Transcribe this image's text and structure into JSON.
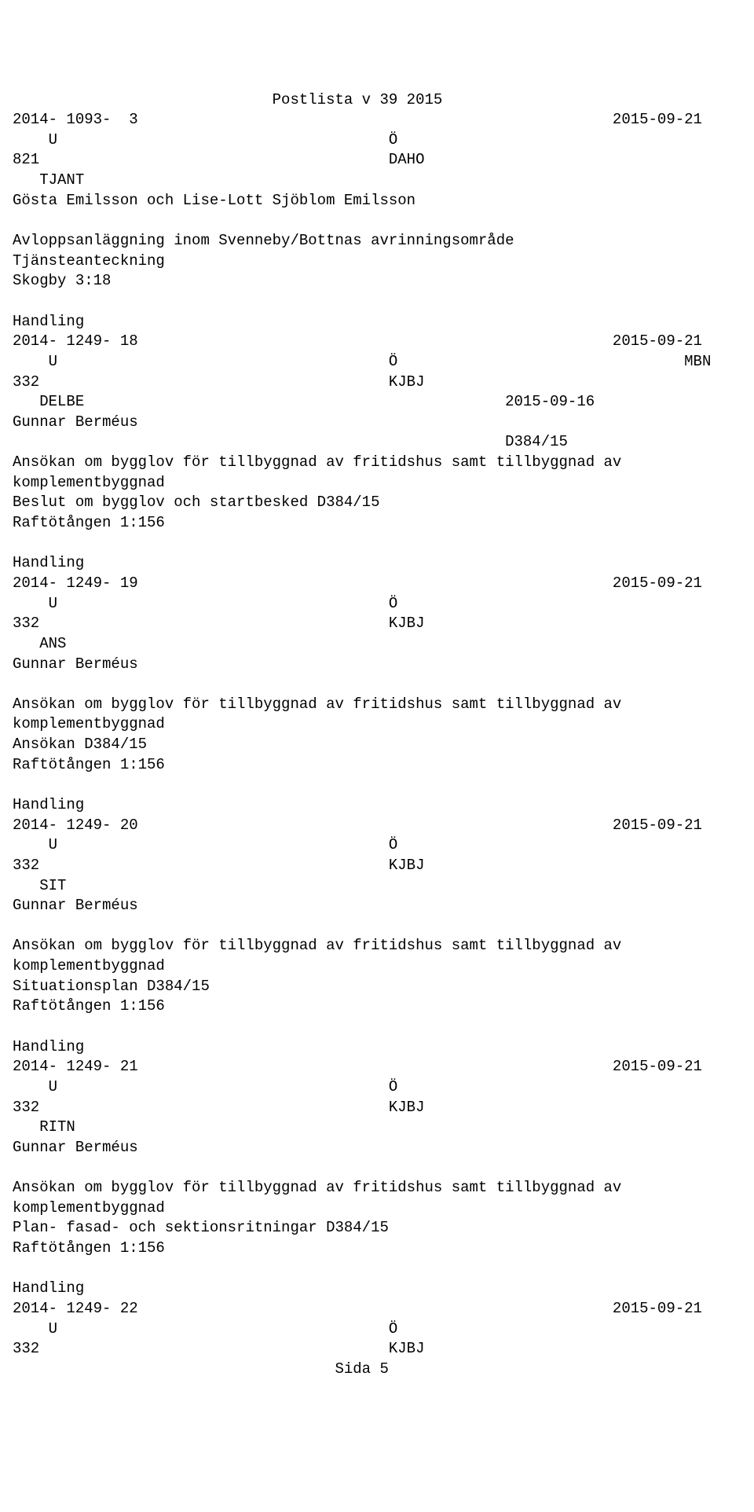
{
  "page_title": "Postlista v 39 2015",
  "entries": [
    {
      "id_line": {
        "left": "2014- 1093-  3",
        "right": "2015-09-21"
      },
      "uo_line": {
        "left": "    U",
        "mid": "Ö",
        "right": ""
      },
      "num_line": {
        "left": "821",
        "mid": "DAHO",
        "right": ""
      },
      "code_line": "   TJANT",
      "person": "Gösta Emilsson och Lise-Lott Sjöblom Emilsson",
      "blank_after_person": true,
      "body": [
        "Avloppsanläggning inom Svenneby/Bottnas avrinningsområde",
        "Tjänsteanteckning",
        "Skogby 3:18"
      ]
    },
    {
      "id_line": {
        "left": "2014- 1249- 18",
        "right": "2015-09-21"
      },
      "uo_line": {
        "left": "    U",
        "mid": "Ö",
        "right": "MBN"
      },
      "num_line": {
        "left": "332",
        "mid": "KJBJ",
        "right": ""
      },
      "code_line": "   DELBE",
      "code_right": "2015-09-16",
      "person": "Gunnar Berméus",
      "extra_right": "D384/15",
      "body": [
        "Ansökan om bygglov för tillbyggnad av fritidshus samt tillbyggnad av",
        "komplementbyggnad",
        "Beslut om bygglov och startbesked D384/15",
        "Raftötången 1:156"
      ]
    },
    {
      "id_line": {
        "left": "2014- 1249- 19",
        "right": "2015-09-21"
      },
      "uo_line": {
        "left": "    U",
        "mid": "Ö",
        "right": ""
      },
      "num_line": {
        "left": "332",
        "mid": "KJBJ",
        "right": ""
      },
      "code_line": "   ANS",
      "person": "Gunnar Berméus",
      "blank_after_person": true,
      "body": [
        "Ansökan om bygglov för tillbyggnad av fritidshus samt tillbyggnad av",
        "komplementbyggnad",
        "Ansökan D384/15",
        "Raftötången 1:156"
      ]
    },
    {
      "id_line": {
        "left": "2014- 1249- 20",
        "right": "2015-09-21"
      },
      "uo_line": {
        "left": "    U",
        "mid": "Ö",
        "right": ""
      },
      "num_line": {
        "left": "332",
        "mid": "KJBJ",
        "right": ""
      },
      "code_line": "   SIT",
      "person": "Gunnar Berméus",
      "blank_after_person": true,
      "body": [
        "Ansökan om bygglov för tillbyggnad av fritidshus samt tillbyggnad av",
        "komplementbyggnad",
        "Situationsplan D384/15",
        "Raftötången 1:156"
      ]
    },
    {
      "id_line": {
        "left": "2014- 1249- 21",
        "right": "2015-09-21"
      },
      "uo_line": {
        "left": "    U",
        "mid": "Ö",
        "right": ""
      },
      "num_line": {
        "left": "332",
        "mid": "KJBJ",
        "right": ""
      },
      "code_line": "   RITN",
      "person": "Gunnar Berméus",
      "blank_after_person": true,
      "body": [
        "Ansökan om bygglov för tillbyggnad av fritidshus samt tillbyggnad av",
        "komplementbyggnad",
        "Plan- fasad- och sektionsritningar D384/15",
        "Raftötången 1:156"
      ]
    },
    {
      "id_line": {
        "left": "2014- 1249- 22",
        "right": "2015-09-21"
      },
      "uo_line": {
        "left": "    U",
        "mid": "Ö",
        "right": ""
      },
      "num_line": {
        "left": "332",
        "mid": "KJBJ",
        "right": ""
      },
      "partial": true
    }
  ],
  "section_label": "Handling",
  "footer": "Sida 5",
  "layout": {
    "width_chars": 78,
    "mid_col": 42,
    "right_col": 67,
    "extra_right_col": 55
  }
}
